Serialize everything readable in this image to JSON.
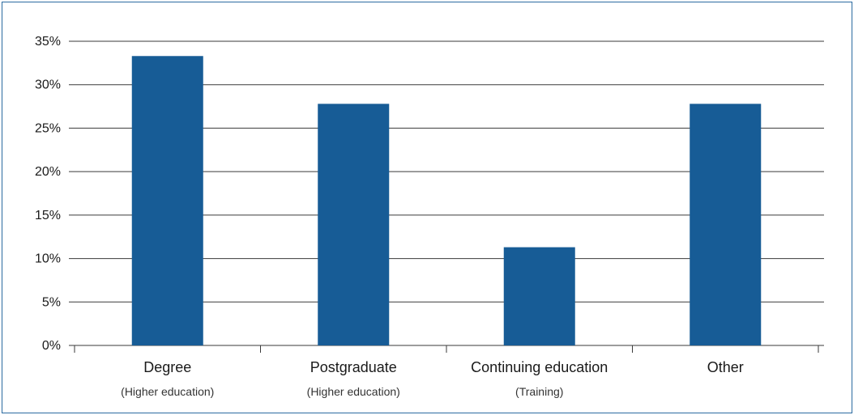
{
  "chart_data": {
    "type": "bar",
    "categories": [
      "Degree",
      "Postgraduate",
      "Continuing education",
      "Other"
    ],
    "category_sublabels": [
      "(Higher education)",
      "(Higher education)",
      "(Training)",
      ""
    ],
    "values": [
      33.3,
      27.8,
      11.3,
      27.8
    ],
    "unit": "%",
    "ylim": [
      0,
      35
    ],
    "yticks": [
      0,
      5,
      10,
      15,
      20,
      25,
      30,
      35
    ],
    "ytick_labels": [
      "0%",
      "5%",
      "10%",
      "15%",
      "20%",
      "25%",
      "30%",
      "35%"
    ],
    "title": "",
    "xlabel": "",
    "ylabel": "",
    "grid": true,
    "legend": "none",
    "colors": {
      "bar": "#175c96",
      "grid": "#3a3a3a",
      "border": "#2b6aa0"
    }
  }
}
